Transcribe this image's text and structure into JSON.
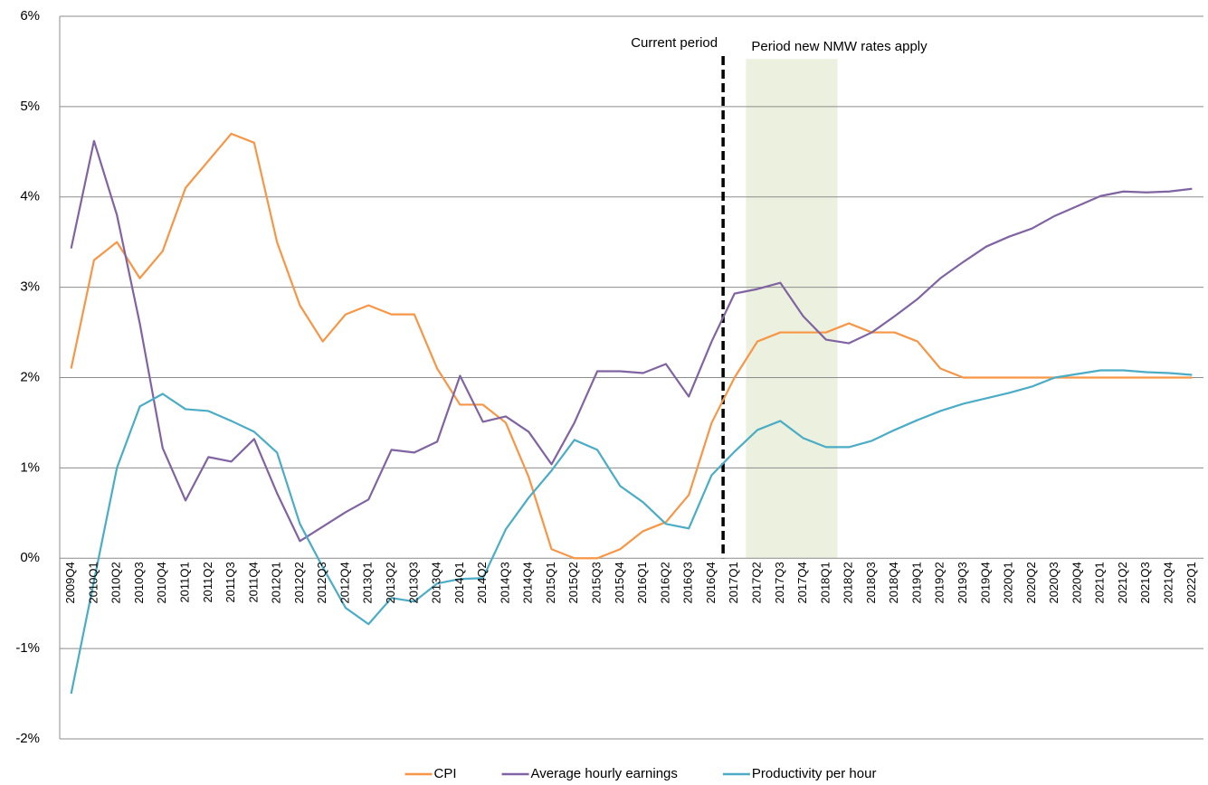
{
  "chart_data": {
    "type": "line",
    "categories": [
      "2009Q4",
      "2010Q1",
      "2010Q2",
      "2010Q3",
      "2010Q4",
      "2011Q1",
      "2011Q2",
      "2011Q3",
      "2011Q4",
      "2012Q1",
      "2012Q2",
      "2012Q3",
      "2012Q4",
      "2013Q1",
      "2013Q2",
      "2013Q3",
      "2013Q4",
      "2014Q1",
      "2014Q2",
      "2014Q3",
      "2014Q4",
      "2015Q1",
      "2015Q2",
      "2015Q3",
      "2015Q4",
      "2016Q1",
      "2016Q2",
      "2016Q3",
      "2016Q4",
      "2017Q1",
      "2017Q2",
      "2017Q3",
      "2017Q4",
      "2018Q1",
      "2018Q2",
      "2018Q3",
      "2018Q4",
      "2019Q1",
      "2019Q2",
      "2019Q3",
      "2019Q4",
      "2020Q1",
      "2020Q2",
      "2020Q3",
      "2020Q4",
      "2021Q1",
      "2021Q2",
      "2021Q3",
      "2021Q4",
      "2022Q1"
    ],
    "series": [
      {
        "name": "CPI",
        "color": "#f79646",
        "values": [
          2.1,
          3.3,
          3.5,
          3.1,
          3.4,
          4.1,
          4.4,
          4.7,
          4.6,
          3.5,
          2.8,
          2.4,
          2.7,
          2.8,
          2.7,
          2.7,
          2.1,
          1.7,
          1.7,
          1.5,
          0.9,
          0.1,
          0.0,
          0.0,
          0.1,
          0.3,
          0.4,
          0.7,
          1.5,
          2.0,
          2.4,
          2.5,
          2.5,
          2.5,
          2.6,
          2.5,
          2.5,
          2.4,
          2.1,
          2.0,
          2.0,
          2.0,
          2.0,
          2.0,
          2.0,
          2.0,
          2.0,
          2.0,
          2.0,
          2.0
        ]
      },
      {
        "name": "Average hourly earnings",
        "color": "#8064a2",
        "values": [
          3.43,
          4.62,
          3.8,
          2.6,
          1.22,
          0.64,
          1.12,
          1.07,
          1.32,
          0.72,
          0.19,
          0.35,
          0.51,
          0.65,
          1.2,
          1.17,
          1.29,
          2.02,
          1.51,
          1.57,
          1.4,
          1.04,
          1.5,
          2.07,
          2.07,
          2.05,
          2.15,
          1.79,
          2.4,
          2.93,
          2.98,
          3.05,
          2.68,
          2.42,
          2.38,
          2.5,
          2.68,
          2.87,
          3.1,
          3.28,
          3.45,
          3.56,
          3.65,
          3.79,
          3.9,
          4.01,
          4.06,
          4.05,
          4.06,
          4.09
        ]
      },
      {
        "name": "Productivity per hour",
        "color": "#4bacc6",
        "values": [
          -1.5,
          -0.25,
          1.0,
          1.68,
          1.82,
          1.65,
          1.63,
          1.52,
          1.4,
          1.17,
          0.38,
          -0.1,
          -0.55,
          -0.73,
          -0.44,
          -0.48,
          -0.28,
          -0.23,
          -0.22,
          0.32,
          0.67,
          0.97,
          1.31,
          1.2,
          0.8,
          0.62,
          0.38,
          0.33,
          0.92,
          1.18,
          1.42,
          1.52,
          1.33,
          1.23,
          1.23,
          1.3,
          1.42,
          1.53,
          1.63,
          1.71,
          1.77,
          1.83,
          1.9,
          2.0,
          2.04,
          2.08,
          2.08,
          2.06,
          2.05,
          2.03
        ]
      }
    ],
    "ylim": [
      -2,
      6
    ],
    "yticks": [
      {
        "value": -2,
        "label": "-2%"
      },
      {
        "value": -1,
        "label": "-1%"
      },
      {
        "value": 0,
        "label": "0%"
      },
      {
        "value": 1,
        "label": "1%"
      },
      {
        "value": 2,
        "label": "2%"
      },
      {
        "value": 3,
        "label": "3%"
      },
      {
        "value": 4,
        "label": "4%"
      },
      {
        "value": 5,
        "label": "5%"
      },
      {
        "value": 6,
        "label": "6%"
      }
    ],
    "grid": true,
    "legend": "bottom",
    "marker_line": {
      "text": "Current period",
      "after": "2016Q4",
      "color": "#000000"
    },
    "shaded_period": {
      "text": "Period new NMW rates apply",
      "from": "2017Q2",
      "to": "2018Q1",
      "color": "#ebf1de"
    }
  }
}
